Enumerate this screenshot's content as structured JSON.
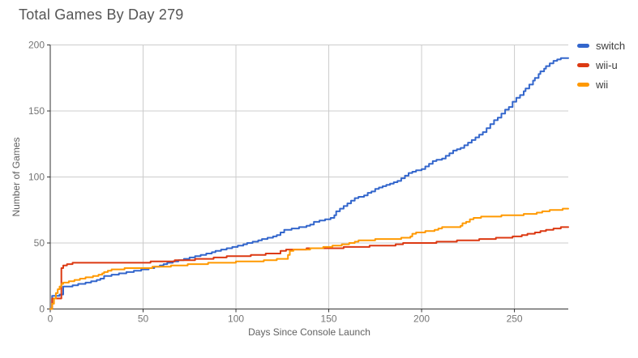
{
  "title": "Total Games By Day 279",
  "colors": {
    "grid": "#cccccc",
    "axis": "#333333",
    "tick_label": "#757575",
    "axis_title": "#616161",
    "title": "#555555",
    "legend_label": "#3c3c3c",
    "background": "#ffffff"
  },
  "chart_data": {
    "type": "line",
    "title": "Total Games By Day 279",
    "xlabel": "Days Since Console Launch",
    "ylabel": "Number of Games",
    "xlim": [
      0,
      279
    ],
    "ylim": [
      0,
      200
    ],
    "x_ticks": [
      0,
      50,
      100,
      150,
      200,
      250
    ],
    "y_ticks": [
      0,
      50,
      100,
      150,
      200
    ],
    "grid": true,
    "legend_position": "right",
    "interpolation": "step-after",
    "series": [
      {
        "name": "switch",
        "color": "#3366CC",
        "points": [
          [
            0,
            0
          ],
          [
            1,
            10
          ],
          [
            5,
            11
          ],
          [
            7,
            17
          ],
          [
            12,
            18
          ],
          [
            15,
            19
          ],
          [
            19,
            20
          ],
          [
            22,
            21
          ],
          [
            25,
            22
          ],
          [
            27,
            23
          ],
          [
            29,
            25
          ],
          [
            33,
            26
          ],
          [
            37,
            27
          ],
          [
            41,
            28
          ],
          [
            45,
            29
          ],
          [
            49,
            30
          ],
          [
            53,
            31
          ],
          [
            56,
            32
          ],
          [
            59,
            33
          ],
          [
            61,
            34
          ],
          [
            63,
            35
          ],
          [
            66,
            36
          ],
          [
            69,
            37
          ],
          [
            72,
            38
          ],
          [
            75,
            39
          ],
          [
            78,
            40
          ],
          [
            81,
            41
          ],
          [
            84,
            42
          ],
          [
            87,
            43
          ],
          [
            89,
            44
          ],
          [
            92,
            45
          ],
          [
            95,
            46
          ],
          [
            98,
            47
          ],
          [
            101,
            48
          ],
          [
            104,
            49
          ],
          [
            106,
            50
          ],
          [
            109,
            51
          ],
          [
            112,
            52
          ],
          [
            114,
            53
          ],
          [
            117,
            54
          ],
          [
            120,
            55
          ],
          [
            122,
            56
          ],
          [
            124,
            58
          ],
          [
            126,
            60
          ],
          [
            130,
            61
          ],
          [
            134,
            62
          ],
          [
            138,
            63
          ],
          [
            140,
            64
          ],
          [
            142,
            66
          ],
          [
            145,
            67
          ],
          [
            148,
            68
          ],
          [
            151,
            69
          ],
          [
            153,
            71
          ],
          [
            154,
            74
          ],
          [
            156,
            76
          ],
          [
            158,
            78
          ],
          [
            160,
            80
          ],
          [
            162,
            82
          ],
          [
            164,
            84
          ],
          [
            166,
            85
          ],
          [
            169,
            86
          ],
          [
            171,
            88
          ],
          [
            173,
            89
          ],
          [
            175,
            91
          ],
          [
            177,
            92
          ],
          [
            179,
            93
          ],
          [
            181,
            94
          ],
          [
            183,
            95
          ],
          [
            185,
            96
          ],
          [
            187,
            97
          ],
          [
            189,
            99
          ],
          [
            191,
            101
          ],
          [
            193,
            103
          ],
          [
            195,
            104
          ],
          [
            197,
            105
          ],
          [
            200,
            106
          ],
          [
            202,
            108
          ],
          [
            204,
            110
          ],
          [
            206,
            112
          ],
          [
            208,
            113
          ],
          [
            211,
            114
          ],
          [
            213,
            116
          ],
          [
            215,
            118
          ],
          [
            217,
            120
          ],
          [
            219,
            121
          ],
          [
            221,
            122
          ],
          [
            223,
            124
          ],
          [
            225,
            126
          ],
          [
            227,
            128
          ],
          [
            229,
            130
          ],
          [
            231,
            132
          ],
          [
            233,
            134
          ],
          [
            235,
            137
          ],
          [
            237,
            140
          ],
          [
            239,
            143
          ],
          [
            241,
            145
          ],
          [
            243,
            148
          ],
          [
            245,
            151
          ],
          [
            247,
            153
          ],
          [
            249,
            157
          ],
          [
            251,
            160
          ],
          [
            253,
            162
          ],
          [
            255,
            165
          ],
          [
            256,
            167
          ],
          [
            258,
            170
          ],
          [
            260,
            173
          ],
          [
            261,
            175
          ],
          [
            263,
            178
          ],
          [
            264,
            180
          ],
          [
            266,
            182
          ],
          [
            267,
            184
          ],
          [
            269,
            186
          ],
          [
            271,
            188
          ],
          [
            273,
            189
          ],
          [
            275,
            190
          ],
          [
            279,
            190
          ]
        ]
      },
      {
        "name": "wii-u",
        "color": "#DC3912",
        "points": [
          [
            0,
            0
          ],
          [
            1,
            8
          ],
          [
            6,
            31
          ],
          [
            7,
            33
          ],
          [
            9,
            34
          ],
          [
            12,
            35
          ],
          [
            54,
            36
          ],
          [
            67,
            37
          ],
          [
            78,
            38
          ],
          [
            88,
            39
          ],
          [
            95,
            40
          ],
          [
            108,
            41
          ],
          [
            116,
            42
          ],
          [
            124,
            44
          ],
          [
            127,
            45
          ],
          [
            138,
            46
          ],
          [
            158,
            47
          ],
          [
            172,
            48
          ],
          [
            186,
            49
          ],
          [
            190,
            50
          ],
          [
            208,
            51
          ],
          [
            219,
            52
          ],
          [
            231,
            53
          ],
          [
            240,
            54
          ],
          [
            249,
            55
          ],
          [
            254,
            56
          ],
          [
            257,
            57
          ],
          [
            261,
            58
          ],
          [
            264,
            59
          ],
          [
            267,
            60
          ],
          [
            271,
            61
          ],
          [
            275,
            62
          ],
          [
            279,
            62
          ]
        ]
      },
      {
        "name": "wii",
        "color": "#FF9900",
        "points": [
          [
            0,
            0
          ],
          [
            1,
            4
          ],
          [
            2,
            8
          ],
          [
            3,
            12
          ],
          [
            4,
            15
          ],
          [
            5,
            17
          ],
          [
            6,
            19
          ],
          [
            7,
            20
          ],
          [
            10,
            21
          ],
          [
            13,
            22
          ],
          [
            16,
            23
          ],
          [
            19,
            24
          ],
          [
            23,
            25
          ],
          [
            26,
            26
          ],
          [
            28,
            27
          ],
          [
            29,
            28
          ],
          [
            31,
            29
          ],
          [
            33,
            30
          ],
          [
            40,
            31
          ],
          [
            55,
            32
          ],
          [
            65,
            33
          ],
          [
            74,
            34
          ],
          [
            85,
            35
          ],
          [
            100,
            36
          ],
          [
            115,
            37
          ],
          [
            122,
            38
          ],
          [
            128,
            41
          ],
          [
            129,
            44
          ],
          [
            131,
            45
          ],
          [
            140,
            46
          ],
          [
            147,
            47
          ],
          [
            152,
            48
          ],
          [
            157,
            49
          ],
          [
            161,
            50
          ],
          [
            164,
            51
          ],
          [
            166,
            52
          ],
          [
            175,
            53
          ],
          [
            189,
            54
          ],
          [
            194,
            55
          ],
          [
            195,
            57
          ],
          [
            197,
            58
          ],
          [
            202,
            59
          ],
          [
            207,
            60
          ],
          [
            209,
            61
          ],
          [
            211,
            62
          ],
          [
            221,
            63
          ],
          [
            222,
            65
          ],
          [
            224,
            66
          ],
          [
            226,
            68
          ],
          [
            228,
            69
          ],
          [
            232,
            70
          ],
          [
            243,
            71
          ],
          [
            255,
            72
          ],
          [
            262,
            73
          ],
          [
            265,
            74
          ],
          [
            269,
            75
          ],
          [
            276,
            76
          ],
          [
            279,
            76
          ]
        ]
      }
    ]
  }
}
